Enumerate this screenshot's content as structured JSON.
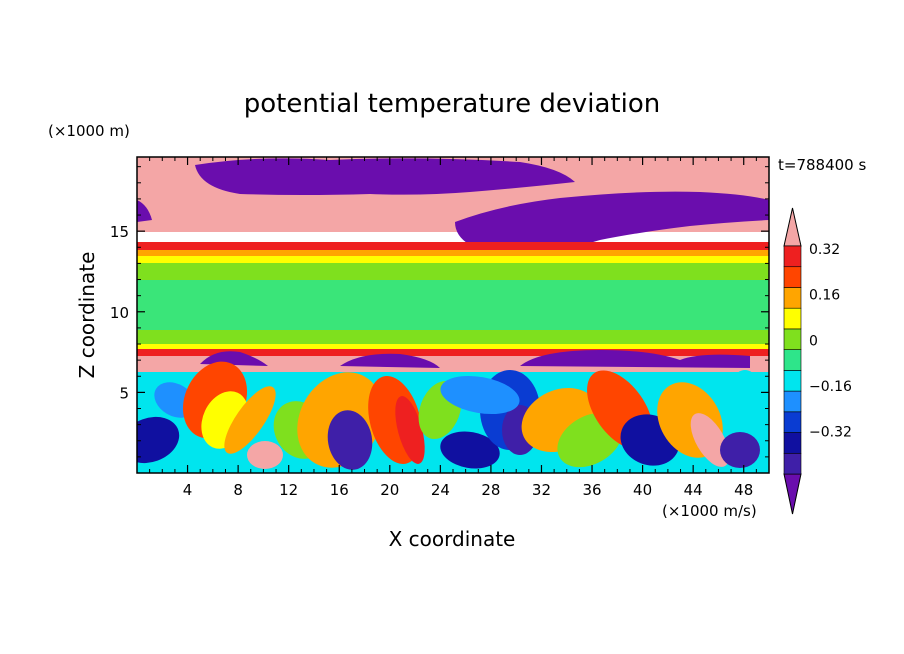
{
  "chart_data": {
    "type": "heatmap",
    "title": "potential temperature deviation",
    "xlabel": "X coordinate",
    "ylabel": "Z coordinate",
    "x_unit": "(×1000 m/s)",
    "y_unit": "(×1000 m)",
    "time_label": "t=788400 s",
    "xlim": [
      0,
      50
    ],
    "ylim": [
      0,
      19.6
    ],
    "x_ticks": [
      "4",
      "8",
      "12",
      "16",
      "20",
      "24",
      "28",
      "32",
      "36",
      "40",
      "44",
      "48"
    ],
    "y_ticks": [
      "5",
      "10",
      "15"
    ],
    "colorbar": {
      "levels": [
        -0.4,
        -0.32,
        -0.24,
        -0.16,
        -0.08,
        0,
        0.08,
        0.16,
        0.24,
        0.32,
        0.4
      ],
      "tick_labels": [
        "0.32",
        "0.16",
        "0",
        "−0.16",
        "−0.32"
      ],
      "colors": [
        "#6a0dad",
        "#3f1fa8",
        "#1010a0",
        "#0a3cd2",
        "#1e90ff",
        "#00e5ee",
        "#2ee58a",
        "#7fe01e",
        "#ffff00",
        "#ffa500",
        "#ff4500",
        "#ee2020",
        "#f4a6a6"
      ]
    },
    "layers": [
      {
        "z_range": [
          15.2,
          19.6
        ],
        "description_values": [
          0.4,
          -0.4
        ]
      },
      {
        "z_range": [
          14.0,
          15.2
        ],
        "description_values": [
          0.35
        ]
      },
      {
        "z_range": [
          7.8,
          14.0
        ],
        "description_values": [
          0.0
        ]
      },
      {
        "z_range": [
          7.0,
          7.8
        ],
        "description_values": [
          0.35
        ]
      },
      {
        "z_range": [
          0,
          7.0
        ],
        "description_values": [
          -0.4,
          0.4
        ]
      }
    ]
  }
}
